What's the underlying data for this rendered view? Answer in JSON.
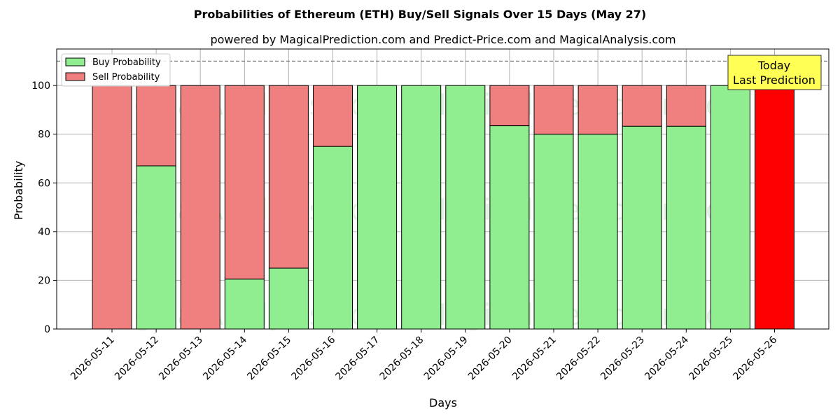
{
  "chart_data": {
    "type": "bar",
    "stacked": true,
    "title": "Probabilities of Ethereum (ETH) Buy/Sell Signals Over 15 Days (May 27)",
    "subtitle": "powered by MagicalPrediction.com and Predict-Price.com and MagicalAnalysis.com",
    "xlabel": "Days",
    "ylabel": "Probability",
    "ylim": [
      0,
      115
    ],
    "yticks": [
      0,
      20,
      40,
      60,
      80,
      100
    ],
    "grid": true,
    "legend_position": "top-left",
    "reference_line": 110,
    "categories": [
      "2026-05-11",
      "2026-05-12",
      "2026-05-13",
      "2026-05-14",
      "2026-05-15",
      "2026-05-16",
      "2026-05-17",
      "2026-05-18",
      "2026-05-19",
      "2026-05-20",
      "2026-05-21",
      "2026-05-22",
      "2026-05-23",
      "2026-05-24",
      "2026-05-25",
      "2026-05-26"
    ],
    "series": [
      {
        "name": "Buy Probability",
        "color": "#90ee90",
        "values": [
          0,
          67,
          0,
          20.5,
          25,
          75,
          100,
          100,
          100,
          83.5,
          80,
          80,
          83.3,
          83.3,
          100,
          0
        ]
      },
      {
        "name": "Sell Probability",
        "color": "#f08080",
        "values": [
          100,
          33,
          100,
          79.5,
          75,
          25,
          0,
          0,
          0,
          16.5,
          20,
          20,
          16.7,
          16.7,
          0,
          100
        ]
      }
    ],
    "highlight": {
      "index": 15,
      "color": "#ff0000"
    },
    "annotation": {
      "lines": [
        "Today",
        "Last Prediction"
      ],
      "background": "#ffff55"
    },
    "watermarks": [
      "MagicalAnalysis.com",
      "MagicalPrediction.com"
    ]
  }
}
